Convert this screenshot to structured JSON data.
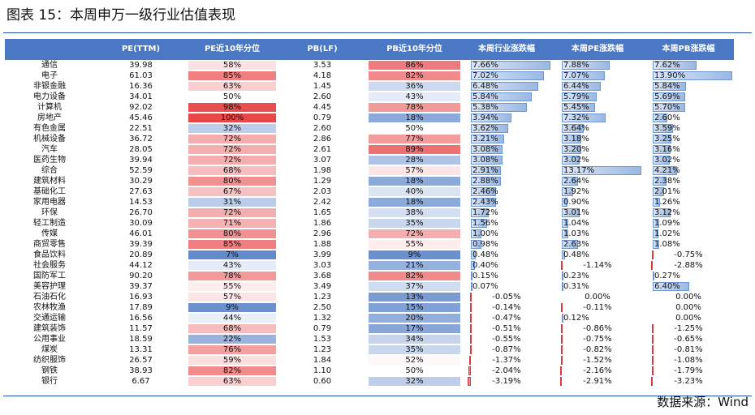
{
  "title": "图表 15：本周申万一级行业估值表现",
  "source": "数据来源：Wind",
  "colors": {
    "header_bg": "#4a78c4",
    "high_percentile": "#e8484a",
    "low_percentile": "#4a78c4",
    "positive_bar": "#9ab8e2",
    "negative_bar": "#e8484a"
  },
  "headers": [
    "",
    "PE(TTM)",
    "PE近10年分位",
    "PB(LF)",
    "PB近10年分位",
    "本周行业涨跌幅",
    "本周PE涨跌幅",
    "本周PB涨跌幅"
  ],
  "rows": [
    {
      "industry": "通信",
      "pe": "39.98",
      "pe_pct": "58%",
      "pb": "3.53",
      "pb_pct": "86%",
      "ind_chg": "7.66%",
      "pe_chg": "7.88%",
      "pb_chg": "7.62%"
    },
    {
      "industry": "电子",
      "pe": "61.03",
      "pe_pct": "85%",
      "pb": "4.18",
      "pb_pct": "82%",
      "ind_chg": "7.02%",
      "pe_chg": "7.07%",
      "pb_chg": "13.90%"
    },
    {
      "industry": "非银金融",
      "pe": "16.36",
      "pe_pct": "63%",
      "pb": "1.45",
      "pb_pct": "36%",
      "ind_chg": "6.48%",
      "pe_chg": "6.44%",
      "pb_chg": "5.84%"
    },
    {
      "industry": "电力设备",
      "pe": "34.01",
      "pe_pct": "50%",
      "pb": "2.60",
      "pb_pct": "43%",
      "ind_chg": "5.84%",
      "pe_chg": "5.79%",
      "pb_chg": "5.69%"
    },
    {
      "industry": "计算机",
      "pe": "92.02",
      "pe_pct": "98%",
      "pb": "4.45",
      "pb_pct": "78%",
      "ind_chg": "5.38%",
      "pe_chg": "5.45%",
      "pb_chg": "5.70%"
    },
    {
      "industry": "房地产",
      "pe": "45.46",
      "pe_pct": "100%",
      "pb": "0.79",
      "pb_pct": "18%",
      "ind_chg": "3.94%",
      "pe_chg": "7.32%",
      "pb_chg": "2.60%"
    },
    {
      "industry": "有色金属",
      "pe": "22.51",
      "pe_pct": "32%",
      "pb": "2.60",
      "pb_pct": "50%",
      "ind_chg": "3.62%",
      "pe_chg": "3.64%",
      "pb_chg": "3.59%"
    },
    {
      "industry": "机械设备",
      "pe": "36.72",
      "pe_pct": "72%",
      "pb": "2.86",
      "pb_pct": "77%",
      "ind_chg": "3.21%",
      "pe_chg": "3.18%",
      "pb_chg": "3.25%"
    },
    {
      "industry": "汽车",
      "pe": "28.05",
      "pe_pct": "72%",
      "pb": "2.61",
      "pb_pct": "89%",
      "ind_chg": "3.08%",
      "pe_chg": "3.20%",
      "pb_chg": "3.16%"
    },
    {
      "industry": "医药生物",
      "pe": "39.94",
      "pe_pct": "72%",
      "pb": "3.07",
      "pb_pct": "28%",
      "ind_chg": "3.08%",
      "pe_chg": "3.02%",
      "pb_chg": "3.02%"
    },
    {
      "industry": "综合",
      "pe": "52.59",
      "pe_pct": "68%",
      "pb": "1.98",
      "pb_pct": "57%",
      "ind_chg": "2.91%",
      "pe_chg": "13.17%",
      "pb_chg": "4.21%"
    },
    {
      "industry": "建筑材料",
      "pe": "30.29",
      "pe_pct": "80%",
      "pb": "1.29",
      "pb_pct": "18%",
      "ind_chg": "2.88%",
      "pe_chg": "2.64%",
      "pb_chg": "2.38%"
    },
    {
      "industry": "基础化工",
      "pe": "27.63",
      "pe_pct": "67%",
      "pb": "2.03",
      "pb_pct": "40%",
      "ind_chg": "2.46%",
      "pe_chg": "1.92%",
      "pb_chg": "2.01%"
    },
    {
      "industry": "家用电器",
      "pe": "14.53",
      "pe_pct": "31%",
      "pb": "2.42",
      "pb_pct": "18%",
      "ind_chg": "2.43%",
      "pe_chg": "0.90%",
      "pb_chg": "1.26%"
    },
    {
      "industry": "环保",
      "pe": "26.70",
      "pe_pct": "72%",
      "pb": "1.65",
      "pb_pct": "38%",
      "ind_chg": "1.72%",
      "pe_chg": "3.01%",
      "pb_chg": "3.12%"
    },
    {
      "industry": "轻工制造",
      "pe": "30.09",
      "pe_pct": "71%",
      "pb": "1.86",
      "pb_pct": "35%",
      "ind_chg": "1.56%",
      "pe_chg": "1.04%",
      "pb_chg": "1.09%"
    },
    {
      "industry": "传媒",
      "pe": "46.01",
      "pe_pct": "80%",
      "pb": "2.96",
      "pb_pct": "72%",
      "ind_chg": "1.00%",
      "pe_chg": "1.03%",
      "pb_chg": "1.02%"
    },
    {
      "industry": "商贸零售",
      "pe": "39.39",
      "pe_pct": "85%",
      "pb": "1.88",
      "pb_pct": "55%",
      "ind_chg": "0.98%",
      "pe_chg": "2.63%",
      "pb_chg": "1.08%"
    },
    {
      "industry": "食品饮料",
      "pe": "20.89",
      "pe_pct": "7%",
      "pb": "3.99",
      "pb_pct": "9%",
      "ind_chg": "0.48%",
      "pe_chg": "0.48%",
      "pb_chg": "-0.75%"
    },
    {
      "industry": "社会服务",
      "pe": "44.12",
      "pe_pct": "43%",
      "pb": "3.03",
      "pb_pct": "21%",
      "ind_chg": "0.40%",
      "pe_chg": "-1.14%",
      "pb_chg": "-2.88%"
    },
    {
      "industry": "国防军工",
      "pe": "90.20",
      "pe_pct": "78%",
      "pb": "3.68",
      "pb_pct": "82%",
      "ind_chg": "0.15%",
      "pe_chg": "0.23%",
      "pb_chg": "0.27%"
    },
    {
      "industry": "美容护理",
      "pe": "39.37",
      "pe_pct": "55%",
      "pb": "3.49",
      "pb_pct": "37%",
      "ind_chg": "0.07%",
      "pe_chg": "0.31%",
      "pb_chg": "6.40%"
    },
    {
      "industry": "石油石化",
      "pe": "16.93",
      "pe_pct": "57%",
      "pb": "1.23",
      "pb_pct": "13%",
      "ind_chg": "-0.05%",
      "pe_chg": "0.00%",
      "pb_chg": "0.00%"
    },
    {
      "industry": "农林牧渔",
      "pe": "17.89",
      "pe_pct": "9%",
      "pb": "2.50",
      "pb_pct": "15%",
      "ind_chg": "-0.14%",
      "pe_chg": "-0.11%",
      "pb_chg": "0.00%"
    },
    {
      "industry": "交通运输",
      "pe": "16.56",
      "pe_pct": "44%",
      "pb": "1.32",
      "pb_pct": "20%",
      "ind_chg": "-0.47%",
      "pe_chg": "0.12%",
      "pb_chg": "0.00%"
    },
    {
      "industry": "建筑装饰",
      "pe": "11.57",
      "pe_pct": "68%",
      "pb": "0.79",
      "pb_pct": "17%",
      "ind_chg": "-0.51%",
      "pe_chg": "-0.86%",
      "pb_chg": "-1.25%"
    },
    {
      "industry": "公用事业",
      "pe": "18.59",
      "pe_pct": "22%",
      "pb": "1.53",
      "pb_pct": "34%",
      "ind_chg": "-0.55%",
      "pe_chg": "-0.75%",
      "pb_chg": "-0.65%"
    },
    {
      "industry": "煤炭",
      "pe": "13.31",
      "pe_pct": "76%",
      "pb": "1.23",
      "pb_pct": "35%",
      "ind_chg": "-0.87%",
      "pe_chg": "-0.82%",
      "pb_chg": "-0.81%"
    },
    {
      "industry": "纺织服饰",
      "pe": "26.57",
      "pe_pct": "59%",
      "pb": "1.84",
      "pb_pct": "52%",
      "ind_chg": "-1.37%",
      "pe_chg": "-1.52%",
      "pb_chg": "-1.08%"
    },
    {
      "industry": "钢铁",
      "pe": "38.93",
      "pe_pct": "82%",
      "pb": "1.10",
      "pb_pct": "50%",
      "ind_chg": "-2.04%",
      "pe_chg": "-2.16%",
      "pb_chg": "-1.79%"
    },
    {
      "industry": "银行",
      "pe": "6.67",
      "pe_pct": "63%",
      "pb": "0.60",
      "pb_pct": "32%",
      "ind_chg": "-3.19%",
      "pe_chg": "-2.91%",
      "pb_chg": "-3.23%"
    }
  ]
}
